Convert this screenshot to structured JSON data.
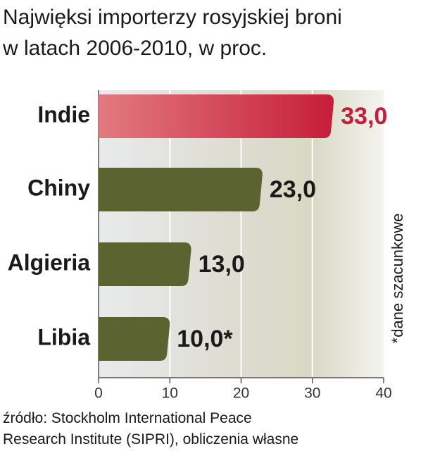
{
  "chart_data": {
    "type": "barh",
    "title": [
      "Najwięksi importerzy rosyjskiej broni",
      "w latach 2006-2010, w proc."
    ],
    "categories": [
      "Indie",
      "Chiny",
      "Algieria",
      "Libia"
    ],
    "values": [
      33,
      23,
      13,
      10
    ],
    "value_labels": [
      "33,0",
      "23,0",
      "13,0",
      "10,0*"
    ],
    "colors": [
      "#c61d3a",
      "#5b6330",
      "#5b6330",
      "#5b6330"
    ],
    "label_colors": [
      "#c61d3a",
      "#1a1a1a",
      "#1a1a1a",
      "#1a1a1a"
    ],
    "xlim": [
      0,
      40
    ],
    "xticks": [
      0,
      10,
      20,
      30,
      40
    ],
    "grid": true,
    "annotation": "*dane szacunkowe",
    "source": [
      "źródło: Stockholm International Peace",
      "Research Institute (SIPRI), obliczenia własne"
    ]
  }
}
